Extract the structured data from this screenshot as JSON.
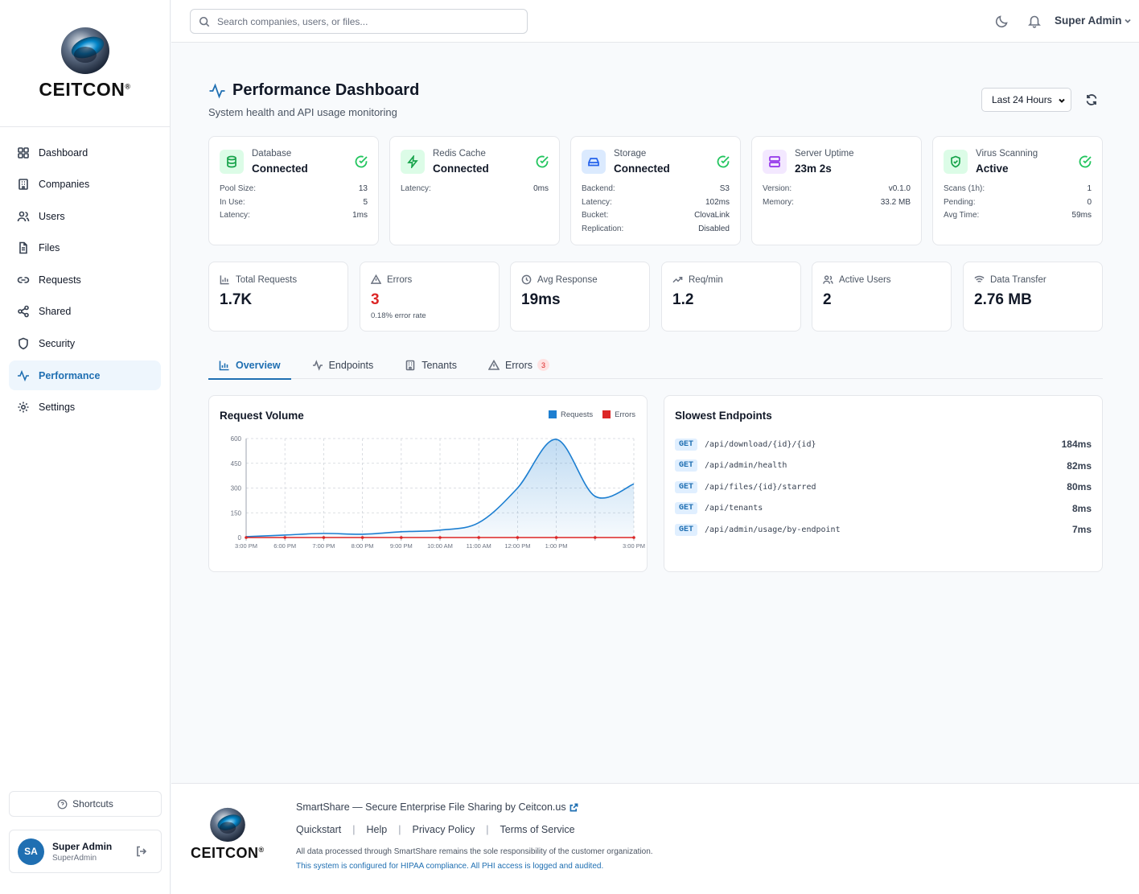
{
  "brand": {
    "name": "CEITCON",
    "reg": "®"
  },
  "sidebar": {
    "items": [
      {
        "label": "Dashboard",
        "icon": "grid-icon"
      },
      {
        "label": "Companies",
        "icon": "building-icon"
      },
      {
        "label": "Users",
        "icon": "users-icon"
      },
      {
        "label": "Files",
        "icon": "file-icon"
      },
      {
        "label": "Requests",
        "icon": "link-icon"
      },
      {
        "label": "Shared",
        "icon": "share-icon"
      },
      {
        "label": "Security",
        "icon": "shield-icon"
      },
      {
        "label": "Performance",
        "icon": "activity-icon",
        "active": true
      },
      {
        "label": "Settings",
        "icon": "gear-icon"
      }
    ],
    "shortcuts_label": "Shortcuts",
    "user": {
      "initials": "SA",
      "name": "Super Admin",
      "role": "SuperAdmin"
    }
  },
  "topbar": {
    "search_placeholder": "Search companies, users, or files...",
    "user_label": "Super Admin"
  },
  "header": {
    "title": "Performance Dashboard",
    "subtitle": "System health and API usage monitoring",
    "range": "Last 24 Hours"
  },
  "status_cards": [
    {
      "label": "Database",
      "value": "Connected",
      "rows": [
        [
          "Pool Size:",
          "13"
        ],
        [
          "In Use:",
          "5"
        ],
        [
          "Latency:",
          "1ms"
        ]
      ]
    },
    {
      "label": "Redis Cache",
      "value": "Connected",
      "rows": [
        [
          "Latency:",
          "0ms"
        ]
      ]
    },
    {
      "label": "Storage",
      "value": "Connected",
      "rows": [
        [
          "Backend:",
          "S3"
        ],
        [
          "Latency:",
          "102ms"
        ],
        [
          "Bucket:",
          "ClovaLink"
        ],
        [
          "Replication:",
          "Disabled"
        ]
      ]
    },
    {
      "label": "Server Uptime",
      "value": "23m 2s",
      "rows": [
        [
          "Version:",
          "v0.1.0"
        ],
        [
          "Memory:",
          "33.2 MB"
        ]
      ]
    },
    {
      "label": "Virus Scanning",
      "value": "Active",
      "rows": [
        [
          "Scans (1h):",
          "1"
        ],
        [
          "Pending:",
          "0"
        ],
        [
          "Avg Time:",
          "59ms"
        ]
      ]
    }
  ],
  "metrics": [
    {
      "label": "Total Requests",
      "value": "1.7K"
    },
    {
      "label": "Errors",
      "value": "3",
      "sub": "0.18% error rate"
    },
    {
      "label": "Avg Response",
      "value": "19ms"
    },
    {
      "label": "Req/min",
      "value": "1.2"
    },
    {
      "label": "Active Users",
      "value": "2"
    },
    {
      "label": "Data Transfer",
      "value": "2.76 MB"
    }
  ],
  "tabs": [
    {
      "label": "Overview"
    },
    {
      "label": "Endpoints"
    },
    {
      "label": "Tenants"
    },
    {
      "label": "Errors",
      "badge": "3"
    }
  ],
  "chart_data": {
    "type": "area",
    "title": "Request Volume",
    "categories": [
      "3:00 PM",
      "6:00 PM",
      "7:00 PM",
      "8:00 PM",
      "9:00 PM",
      "10:00 AM",
      "11:00 AM",
      "12:00 PM",
      "1:00 PM",
      "",
      "3:00 PM"
    ],
    "series": [
      {
        "name": "Requests",
        "color": "#1d7fd1",
        "values": [
          5,
          15,
          25,
          20,
          35,
          45,
          90,
          300,
          595,
          250,
          325
        ]
      },
      {
        "name": "Errors",
        "color": "#dc2626",
        "values": [
          0,
          0,
          0,
          0,
          0,
          0,
          0,
          0,
          0,
          0,
          0
        ]
      }
    ],
    "yticks": [
      0,
      150,
      300,
      450,
      600
    ],
    "ylim": [
      0,
      600
    ],
    "grid": true,
    "legend": "top-right"
  },
  "slowest": {
    "title": "Slowest Endpoints",
    "rows": [
      {
        "method": "GET",
        "path": "/api/download/{id}/{id}",
        "time": "184ms"
      },
      {
        "method": "GET",
        "path": "/api/admin/health",
        "time": "82ms"
      },
      {
        "method": "GET",
        "path": "/api/files/{id}/starred",
        "time": "80ms"
      },
      {
        "method": "GET",
        "path": "/api/tenants",
        "time": "8ms"
      },
      {
        "method": "GET",
        "path": "/api/admin/usage/by-endpoint",
        "time": "7ms"
      }
    ]
  },
  "footer": {
    "tagline": "SmartShare — Secure Enterprise File Sharing by Ceitcon.us",
    "links": [
      "Quickstart",
      "Help",
      "Privacy Policy",
      "Terms of Service"
    ],
    "note": "All data processed through SmartShare remains the sole responsibility of the customer organization.",
    "hipaa": "This system is configured for HIPAA compliance. All PHI access is logged and audited."
  }
}
